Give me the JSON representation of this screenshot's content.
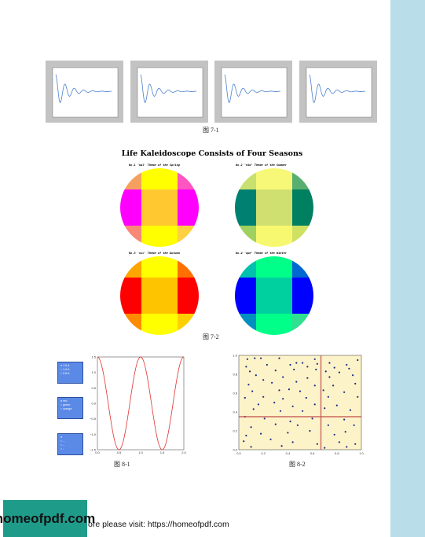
{
  "figure7_1": {
    "caption": "图 7-1"
  },
  "figure7_2": {
    "title": "Life Kaleidoscope Consists of Four Seasons",
    "caption": "图 7-2",
    "subtitles": [
      "No.1 'kal' Theme of the Spring",
      "No.2 'eid' Theme of the Summer",
      "No.3 'osc' Theme of the Autumn",
      "No.4 'ope' Theme of the Winter"
    ],
    "palettes": [
      [
        "#f6a060",
        "#ffff00",
        "#ff55c0",
        "#ff00ff",
        "#ffc830",
        "#ff00ff",
        "#f88878",
        "#ffff00",
        "#ffd040"
      ],
      [
        "#c8e070",
        "#f8f878",
        "#58b070",
        "#008070",
        "#d0e070",
        "#008060",
        "#a0d060",
        "#f8f870",
        "#d0e060"
      ],
      [
        "#ffa500",
        "#ffff00",
        "#ff7000",
        "#ff0000",
        "#ffc400",
        "#ff0000",
        "#ff8c00",
        "#ffff00",
        "#ffd000"
      ],
      [
        "#00c0b0",
        "#00ff88",
        "#0068d0",
        "#0000ff",
        "#00d0a0",
        "#0000ff",
        "#0090c0",
        "#00ff88",
        "#30e090"
      ]
    ]
  },
  "figure8_1": {
    "caption": "图 8-1",
    "legends": [
      [
        "1.5 A",
        "1.0 A",
        "0.8 A"
      ],
      [
        "red",
        "green",
        "orange"
      ],
      [
        "",
        "--",
        "-.",
        ":"
      ]
    ],
    "chart_data": {
      "type": "line",
      "title": "",
      "xlabel": "",
      "ylabel": "",
      "xlim": [
        0.0,
        2.0
      ],
      "ylim": [
        -1.5,
        1.5
      ],
      "x_ticks": [
        "0.0",
        "0.5",
        "1.0",
        "1.5",
        "2.0"
      ],
      "y_ticks": [
        "1.5",
        "1.0",
        "0.5",
        "0.0",
        "−0.5",
        "−1.0",
        "−1.5"
      ],
      "series": [
        {
          "function": "1.5*cos(2*pi*x)",
          "color": "#e03030"
        }
      ]
    }
  },
  "figure8_2": {
    "caption": "图 8-2",
    "chart_data": {
      "type": "scatter",
      "title": "",
      "xlim": [
        0.0,
        1.0
      ],
      "ylim": [
        0.0,
        1.0
      ],
      "x_ticks": [
        "0.0",
        "0.2",
        "0.4",
        "0.6",
        "0.8",
        "1.0"
      ],
      "y_ticks": [
        "1.0",
        "0.8",
        "0.6",
        "0.4",
        "0.2",
        "0.0"
      ],
      "vline_x": 0.67,
      "hline_y": 0.35,
      "background": "#fdf3c8",
      "point_color": "#1a2a8a",
      "points": [
        [
          0.07,
          0.96
        ],
        [
          0.13,
          0.97
        ],
        [
          0.18,
          0.97
        ],
        [
          0.33,
          0.97
        ],
        [
          0.62,
          0.96
        ],
        [
          0.47,
          0.92
        ],
        [
          0.52,
          0.92
        ],
        [
          0.64,
          0.91
        ],
        [
          0.74,
          0.92
        ],
        [
          0.88,
          0.9
        ],
        [
          0.97,
          0.95
        ],
        [
          0.06,
          0.88
        ],
        [
          0.23,
          0.9
        ],
        [
          0.42,
          0.9
        ],
        [
          0.56,
          0.88
        ],
        [
          0.78,
          0.87
        ],
        [
          0.9,
          0.86
        ],
        [
          0.09,
          0.83
        ],
        [
          0.3,
          0.84
        ],
        [
          0.45,
          0.85
        ],
        [
          0.63,
          0.85
        ],
        [
          0.71,
          0.83
        ],
        [
          0.82,
          0.82
        ],
        [
          0.14,
          0.79
        ],
        [
          0.2,
          0.74
        ],
        [
          0.36,
          0.77
        ],
        [
          0.56,
          0.76
        ],
        [
          0.74,
          0.77
        ],
        [
          0.93,
          0.79
        ],
        [
          0.08,
          0.69
        ],
        [
          0.27,
          0.71
        ],
        [
          0.47,
          0.72
        ],
        [
          0.62,
          0.68
        ],
        [
          0.77,
          0.68
        ],
        [
          0.95,
          0.7
        ],
        [
          0.11,
          0.62
        ],
        [
          0.33,
          0.63
        ],
        [
          0.41,
          0.64
        ],
        [
          0.5,
          0.62
        ],
        [
          0.69,
          0.63
        ],
        [
          0.86,
          0.61
        ],
        [
          0.05,
          0.55
        ],
        [
          0.2,
          0.56
        ],
        [
          0.36,
          0.54
        ],
        [
          0.55,
          0.55
        ],
        [
          0.73,
          0.56
        ],
        [
          0.97,
          0.56
        ],
        [
          0.16,
          0.48
        ],
        [
          0.29,
          0.5
        ],
        [
          0.44,
          0.46
        ],
        [
          0.62,
          0.48
        ],
        [
          0.8,
          0.47
        ],
        [
          0.12,
          0.43
        ],
        [
          0.34,
          0.41
        ],
        [
          0.52,
          0.41
        ],
        [
          0.7,
          0.44
        ],
        [
          0.91,
          0.42
        ],
        [
          0.05,
          0.35
        ],
        [
          0.21,
          0.33
        ],
        [
          0.42,
          0.3
        ],
        [
          0.6,
          0.33
        ],
        [
          0.86,
          0.32
        ],
        [
          0.1,
          0.24
        ],
        [
          0.3,
          0.27
        ],
        [
          0.48,
          0.26
        ],
        [
          0.73,
          0.26
        ],
        [
          0.94,
          0.26
        ],
        [
          0.06,
          0.15
        ],
        [
          0.18,
          0.17
        ],
        [
          0.4,
          0.18
        ],
        [
          0.58,
          0.2
        ],
        [
          0.78,
          0.16
        ],
        [
          0.87,
          0.19
        ],
        [
          0.04,
          0.09
        ],
        [
          0.26,
          0.11
        ],
        [
          0.44,
          0.08
        ],
        [
          0.64,
          0.06
        ],
        [
          0.82,
          0.08
        ],
        [
          0.95,
          0.06
        ],
        [
          0.1,
          0.03
        ],
        [
          0.35,
          0.04
        ],
        [
          0.7,
          0.02
        ],
        [
          0.88,
          0.03
        ]
      ]
    }
  },
  "footer": {
    "logo": "homeofpdf.com",
    "text": "ore please visit: https://homeofpdf.com"
  }
}
